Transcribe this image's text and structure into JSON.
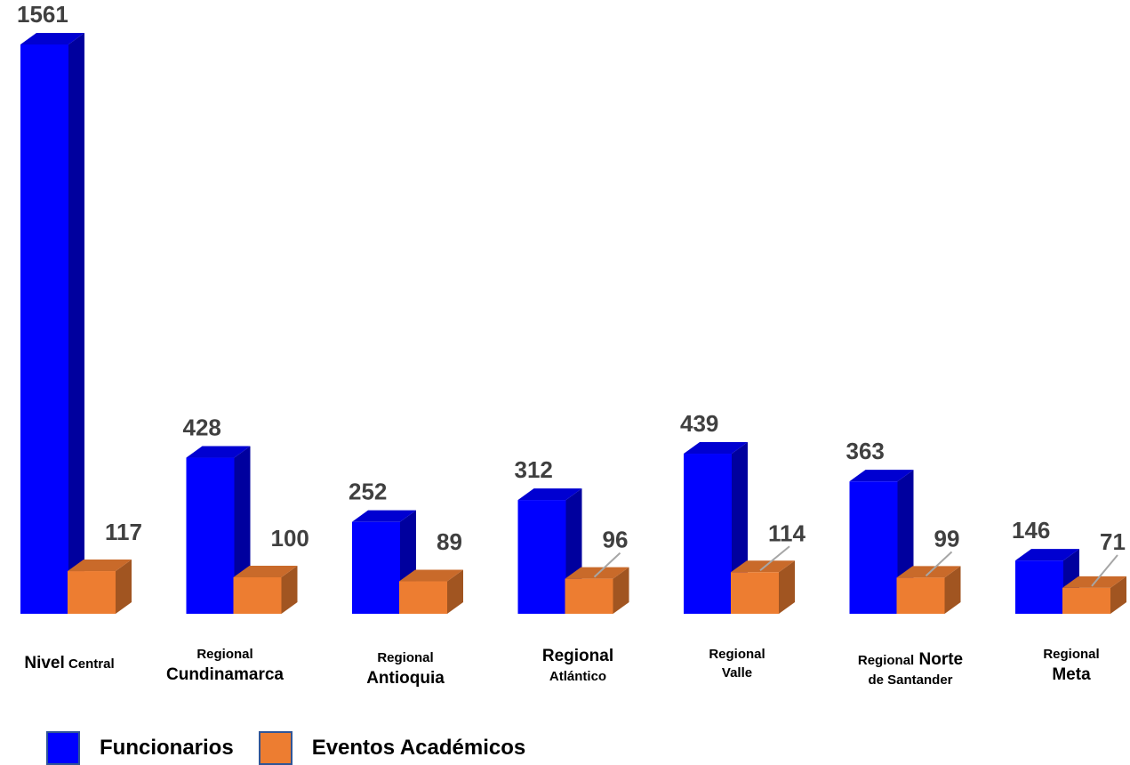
{
  "chart_data": {
    "type": "bar",
    "categories": [
      {
        "parts": [
          {
            "text": "Nivel",
            "size": "big"
          },
          {
            "text": " Central",
            "size": "small"
          }
        ]
      },
      {
        "parts": [
          {
            "text": "Regional",
            "size": "small"
          },
          {
            "text": "\n"
          },
          {
            "text": "Cundinamarca",
            "size": "big"
          }
        ]
      },
      {
        "parts": [
          {
            "text": "Regional",
            "size": "small"
          },
          {
            "text": "\n"
          },
          {
            "text": "Antioquia",
            "size": "big"
          }
        ]
      },
      {
        "parts": [
          {
            "text": "Regional",
            "size": "big"
          },
          {
            "text": "\n"
          },
          {
            "text": "Atlántico",
            "size": "small"
          }
        ]
      },
      {
        "parts": [
          {
            "text": "Regional",
            "size": "small"
          },
          {
            "text": "\n"
          },
          {
            "text": "Valle",
            "size": "small"
          }
        ]
      },
      {
        "parts": [
          {
            "text": "Regional",
            "size": "small"
          },
          {
            "text": " Norte",
            "size": "big"
          },
          {
            "text": "\n"
          },
          {
            "text": "de Santander",
            "size": "small"
          }
        ]
      },
      {
        "parts": [
          {
            "text": "Regional",
            "size": "small"
          },
          {
            "text": "\n"
          },
          {
            "text": "Meta",
            "size": "big"
          }
        ]
      }
    ],
    "series": [
      {
        "name": "Funcionarios",
        "color": "#0000ff",
        "values": [
          1561,
          428,
          252,
          312,
          439,
          363,
          146
        ]
      },
      {
        "name": "Eventos Académicos",
        "color": "#ed7d31",
        "values": [
          117,
          100,
          89,
          96,
          114,
          99,
          71
        ]
      }
    ],
    "ylim": [
      0,
      1561
    ],
    "grid": false,
    "legend_position": "bottom-left",
    "style": "3d-column"
  }
}
